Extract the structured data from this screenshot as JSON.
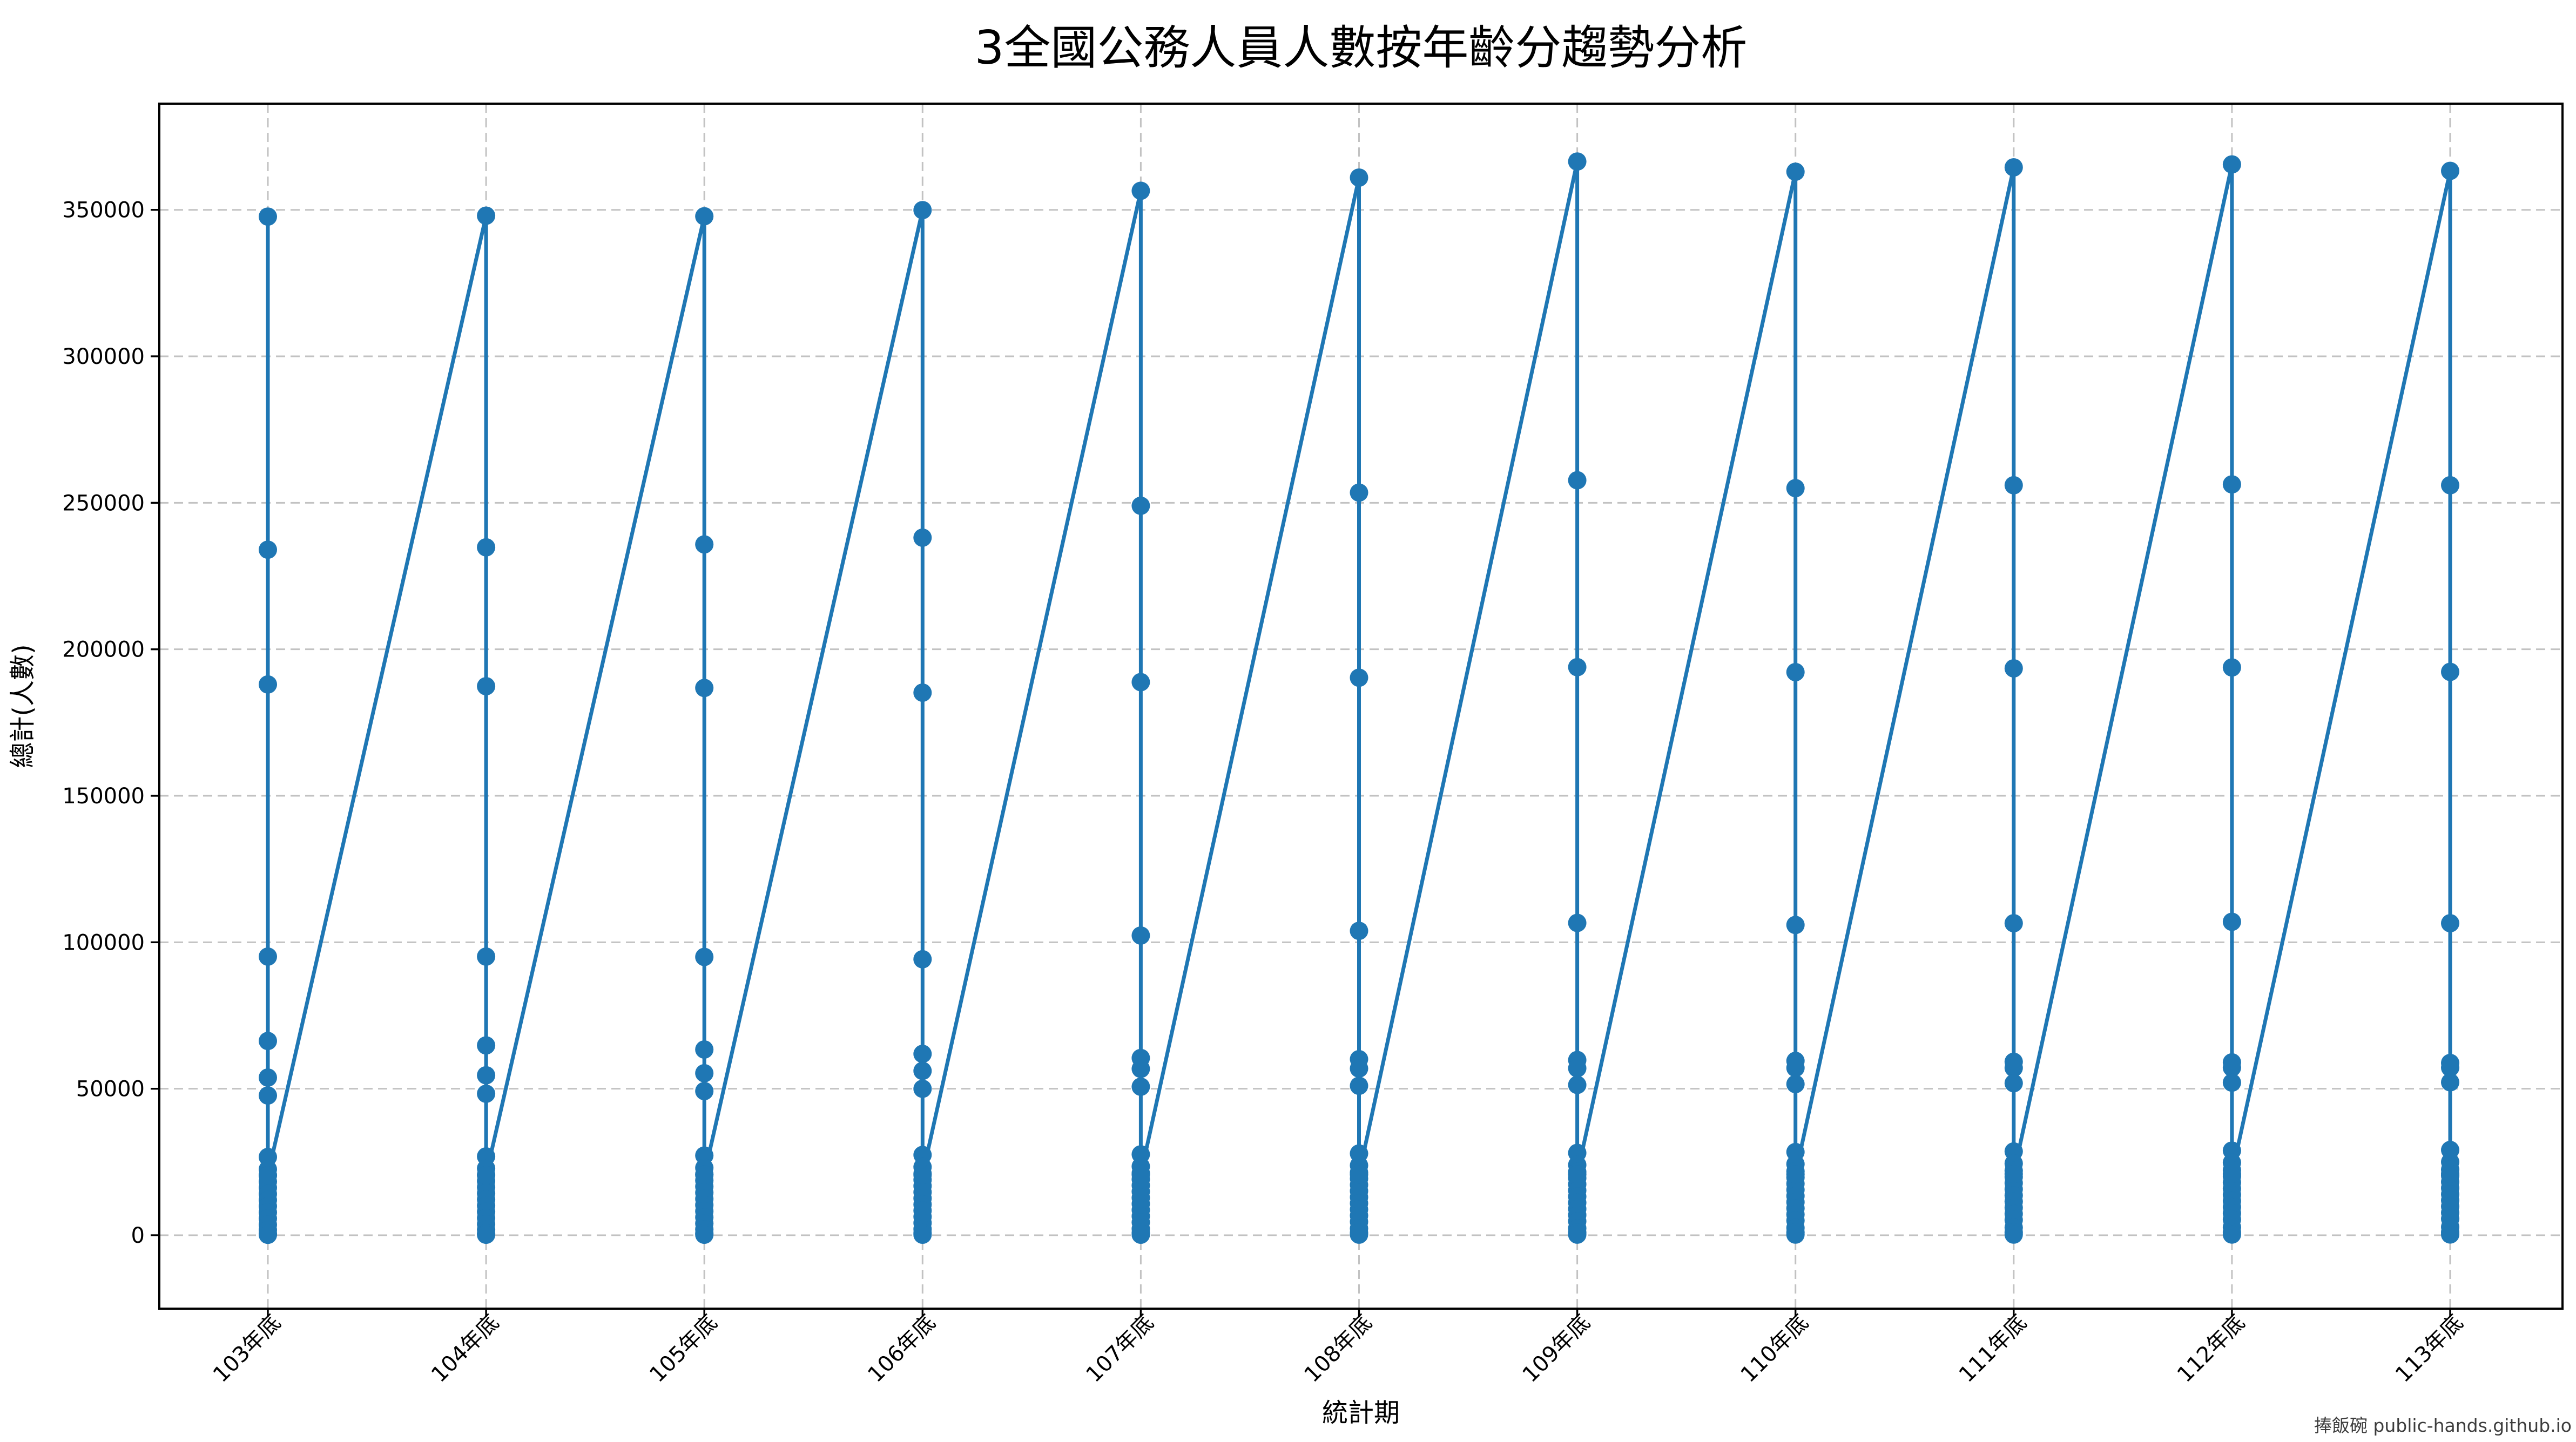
{
  "figure": {
    "background": "#ffffff"
  },
  "chart_data": {
    "type": "line",
    "title": "3全國公務人員人數按年齡分趨勢分析",
    "xlabel": "統計期",
    "ylabel": "總計(人數)",
    "watermark": "捧飯碗 public-hands.github.io",
    "line_color": "#1f77b4",
    "marker": "o",
    "grid": "dashed-gray-both-axes",
    "grid_color": "#c2c2c2",
    "legend_position": "none",
    "xticks_rotation": 45,
    "categories": [
      "103年底",
      "104年底",
      "105年底",
      "106年底",
      "107年底",
      "108年底",
      "109年底",
      "110年底",
      "111年底",
      "112年底",
      "113年底"
    ],
    "yticks": [
      0,
      50000,
      100000,
      150000,
      200000,
      250000,
      300000,
      350000
    ],
    "ytick_labels": [
      "0",
      "50000",
      "100000",
      "150000",
      "200000",
      "250000",
      "300000",
      "350000"
    ],
    "ylim": [
      -25000,
      386000
    ],
    "note": "Each 統計期 contains many 總計(人數) rows plotted sequentially (values estimated from pixel positions); the last row of each period (~20500) links diagonally to the next period's total.",
    "series": [
      {
        "name": "總計(人數)",
        "points_by_period": [
          [
            347700,
            234000,
            188000,
            95100,
            66300,
            53800,
            47700,
            26700,
            22500,
            20400,
            18300,
            16200,
            14100,
            12000,
            9900,
            7800,
            5700,
            3600,
            1800,
            600,
            150,
            20500
          ],
          [
            348000,
            234800,
            187400,
            95100,
            64800,
            54600,
            48300,
            26900,
            22800,
            20600,
            18500,
            16400,
            14300,
            12200,
            10100,
            8000,
            5900,
            3800,
            1900,
            650,
            160,
            20500
          ],
          [
            347800,
            235800,
            186800,
            95000,
            63400,
            55300,
            49200,
            27200,
            23000,
            20800,
            18700,
            16600,
            14500,
            12400,
            10300,
            8200,
            6100,
            4000,
            2000,
            700,
            170,
            20600
          ],
          [
            349900,
            238100,
            185200,
            94200,
            61900,
            56100,
            50000,
            27400,
            23300,
            21000,
            18900,
            16800,
            14700,
            12600,
            10500,
            8400,
            6300,
            4200,
            2100,
            750,
            180,
            20600
          ],
          [
            356500,
            249000,
            188800,
            102300,
            60500,
            56800,
            50700,
            27600,
            23500,
            21200,
            19100,
            17000,
            14900,
            12800,
            10700,
            8600,
            6500,
            4400,
            2200,
            800,
            190,
            20700
          ],
          [
            361000,
            253500,
            190300,
            103900,
            60100,
            56900,
            51000,
            27900,
            23800,
            21400,
            19300,
            17200,
            15100,
            13000,
            10900,
            8800,
            6700,
            4600,
            2300,
            850,
            200,
            20700
          ],
          [
            366500,
            257700,
            193900,
            106600,
            59800,
            57000,
            51300,
            28100,
            24000,
            21600,
            19500,
            17400,
            15300,
            13200,
            11100,
            9000,
            6900,
            4800,
            2400,
            900,
            210,
            20800
          ],
          [
            363000,
            255000,
            192200,
            105900,
            59500,
            57100,
            51600,
            28400,
            24300,
            21800,
            19700,
            17600,
            15500,
            13400,
            11300,
            9200,
            7100,
            5000,
            2500,
            950,
            220,
            20800
          ],
          [
            364500,
            256000,
            193500,
            106500,
            59200,
            57100,
            51900,
            28600,
            24500,
            22000,
            19900,
            17800,
            15700,
            13600,
            11500,
            9400,
            7300,
            5200,
            2600,
            1000,
            230,
            20900
          ],
          [
            365500,
            256300,
            193800,
            107000,
            59000,
            57200,
            52100,
            28900,
            24800,
            22200,
            20100,
            18000,
            15900,
            13800,
            11700,
            9600,
            7500,
            5400,
            2700,
            1050,
            240,
            20900
          ],
          [
            363300,
            256000,
            192300,
            106500,
            58800,
            57200,
            52200,
            29100,
            25000,
            22400,
            20300,
            18200,
            16100,
            14000,
            11900,
            9800,
            7700,
            5600,
            2800,
            1100,
            250,
            21000
          ]
        ]
      }
    ]
  }
}
